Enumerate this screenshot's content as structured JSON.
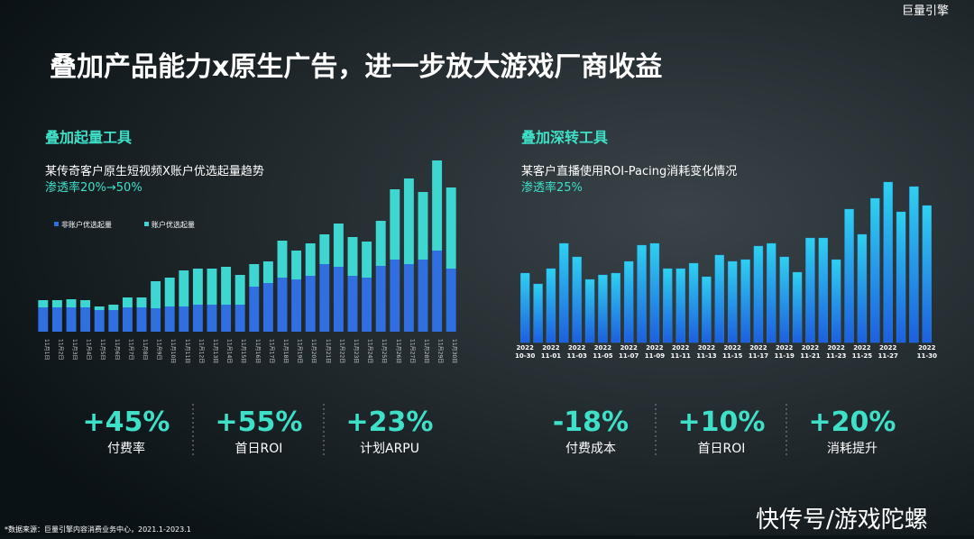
{
  "header": {
    "logo": "巨量引擎",
    "title": "叠加产品能力x原生广告，进一步放大游戏厂商收益"
  },
  "chart_data": [
    {
      "type": "bar",
      "section": "叠加起量工具",
      "title": "某传奇客户原生短视频X账户优选起量趋势",
      "subtitle": "渗透率20%→50%",
      "categories": [
        "11月1日",
        "11月2日",
        "11月3日",
        "11月4日",
        "11月5日",
        "11月6日",
        "11月7日",
        "11月8日",
        "11月9日",
        "11月10日",
        "11月11日",
        "11月12日",
        "11月13日",
        "11月14日",
        "11月15日",
        "11月16日",
        "11月17日",
        "11月18日",
        "11月19日",
        "11月20日",
        "11月21日",
        "11月22日",
        "11月23日",
        "11月24日",
        "11月25日",
        "11月26日",
        "11月27日",
        "11月28日",
        "11月29日",
        "11月30日"
      ],
      "series": [
        {
          "name": "非账户优选起量",
          "color": "#2f6fe0",
          "values": [
            27,
            27,
            27,
            27,
            24,
            24,
            27,
            27,
            26,
            28,
            28,
            30,
            30,
            30,
            30,
            50,
            54,
            60,
            58,
            62,
            75,
            72,
            62,
            60,
            73,
            80,
            75,
            80,
            90,
            70
          ]
        },
        {
          "name": "账户优选起量",
          "color": "#3ed6d0",
          "values": [
            8,
            8,
            9,
            8,
            4,
            6,
            11,
            11,
            30,
            32,
            40,
            40,
            40,
            42,
            33,
            25,
            24,
            41,
            32,
            36,
            33,
            48,
            43,
            40,
            50,
            78,
            95,
            75,
            100,
            90
          ]
        }
      ],
      "ylim": [
        0,
        200
      ]
    },
    {
      "type": "bar",
      "section": "叠加深转工具",
      "title": "某客户直播使用ROI-Pacing消耗变化情况",
      "subtitle": "渗透率25%",
      "categories": [
        "2022 10-30",
        null,
        "2022 11-01",
        null,
        "2022 11-03",
        null,
        "2022 11-05",
        null,
        "2022 11-07",
        null,
        "2022 11-09",
        null,
        "2022 11-11",
        null,
        "2022 11-13",
        null,
        "2022 11-15",
        null,
        "2022 11-17",
        null,
        "2022 11-19",
        null,
        "2022 11-21",
        null,
        "2022 11-23",
        null,
        "2022 11-25",
        null,
        "2022 11-27",
        null,
        null,
        "2022 11-30"
      ],
      "color": "#1e9bf0",
      "values": [
        77,
        65,
        82,
        110,
        95,
        70,
        75,
        77,
        90,
        108,
        110,
        82,
        82,
        88,
        73,
        97,
        90,
        92,
        107,
        110,
        95,
        78,
        116,
        116,
        92,
        148,
        120,
        160,
        178,
        145,
        173,
        152
      ],
      "ylim": [
        0,
        200
      ]
    }
  ],
  "kpis": [
    {
      "value": "+45%",
      "label": "付费率"
    },
    {
      "value": "+55%",
      "label": "首日ROI"
    },
    {
      "value": "+23%",
      "label": "计划ARPU"
    },
    {
      "value": "-18%",
      "label": "付费成本"
    },
    {
      "value": "+10%",
      "label": "首日ROI"
    },
    {
      "value": "+20%",
      "label": "消耗提升"
    }
  ],
  "footer": {
    "source": "*数据来源：巨量引擎内容消费业务中心，2021.1-2023.1",
    "watermark": "快传号/游戏陀螺"
  }
}
